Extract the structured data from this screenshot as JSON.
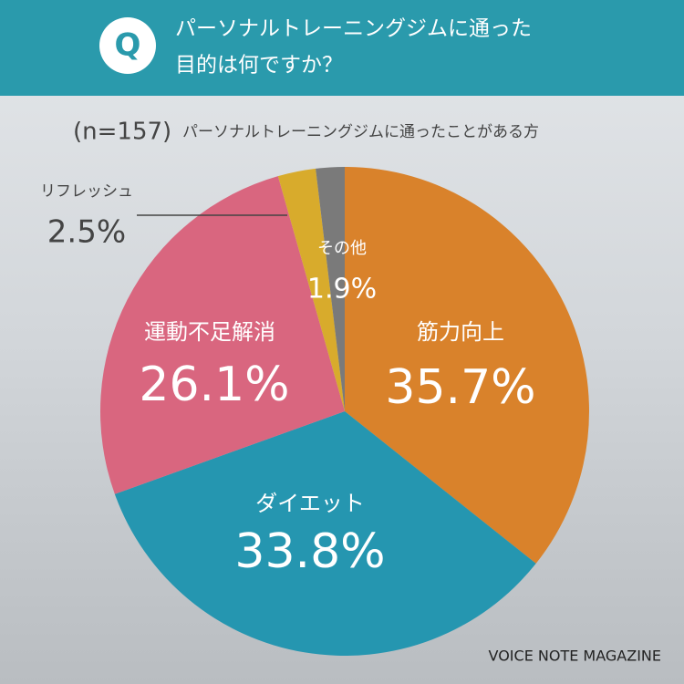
{
  "chart_data": {
    "type": "pie",
    "badge": "Q",
    "title": [
      "パーソナルトレーニングジムに通った",
      "目的は何ですか？"
    ],
    "subtitle": "(n=157)",
    "subtitle_note": "パーソナルトレーニングジムに通ったことがある方",
    "categories": [
      "筋力向上",
      "ダイエット",
      "運動不足解消",
      "リフレッシュ",
      "その他"
    ],
    "values": [
      35.7,
      33.8,
      26.1,
      2.5,
      1.9
    ],
    "value_labels": [
      "35.7%",
      "33.8%",
      "26.1%",
      "2.5%",
      "1.9%"
    ],
    "colors": [
      "#d9822b",
      "#2596b0",
      "#d9667f",
      "#d8ab2c",
      "#7a7a7a"
    ],
    "source": "VOICE NOTE MAGAZINE"
  }
}
